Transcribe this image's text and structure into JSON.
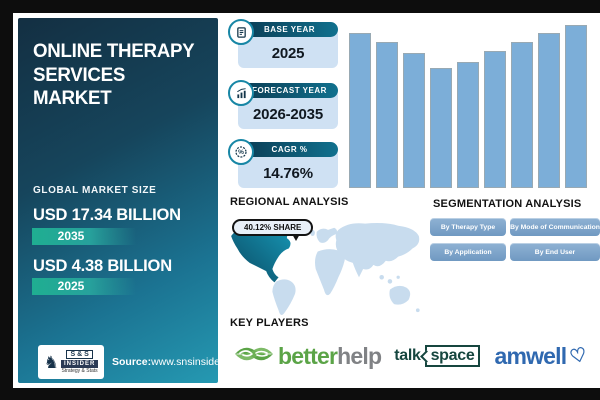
{
  "left_panel": {
    "title_lines": [
      "ONLINE THERAPY",
      "SERVICES",
      "MARKET"
    ],
    "market_size_label": "GLOBAL MARKET SIZE",
    "projected": {
      "value": "USD 17.34 BILLION",
      "year": "2035"
    },
    "base": {
      "value": "USD 4.38 BILLION",
      "year": "2025"
    },
    "source_label": "Source:",
    "source_url": "www.snsinsider.com",
    "logo": {
      "top": "S & S",
      "mid": "INSIDER",
      "bottom": "Strategy & Stats",
      "knight": "♞"
    }
  },
  "info_boxes": [
    {
      "label": "BASE YEAR",
      "value": "2025",
      "icon": "report-document-icon"
    },
    {
      "label": "FORECAST YEAR",
      "value": "2026-2035",
      "icon": "growth-chart-icon"
    },
    {
      "label": "CAGR %",
      "value": "14.76%",
      "icon": "percent-badge-icon"
    }
  ],
  "chart_data": {
    "type": "bar",
    "title": "",
    "xlabel": "",
    "ylabel": "",
    "categories": [
      "",
      "",
      "",
      "",
      "",
      "",
      "",
      "",
      ""
    ],
    "values": [
      155,
      146,
      135,
      120,
      126,
      137,
      146,
      155,
      163
    ],
    "note": "decorative unlabeled bar chart; values are relative bar heights in px, U-shaped dip then rise",
    "grid": false,
    "legend": false,
    "bar_color": "#7caed8"
  },
  "regional": {
    "heading": "REGIONAL ANALYSIS",
    "share_badge": "40.12% SHARE",
    "highlight_region": "north-america"
  },
  "segmentation": {
    "heading": "SEGMENTATION ANALYSIS",
    "buttons": [
      "By Therapy Type",
      "By Mode of Communication",
      "By Application",
      "By End User"
    ]
  },
  "key_players": {
    "heading": "KEY PLAYERS",
    "companies": [
      {
        "name": "betterhelp",
        "part1": "better",
        "part2": "help",
        "icon": "hands-leaf-icon"
      },
      {
        "name": "talkspace",
        "part1": "talk",
        "part2": "space",
        "icon": "speech-box-icon"
      },
      {
        "name": "amwell",
        "part1": "amwell",
        "heart": "♡",
        "icon": "heart-icon"
      }
    ]
  },
  "colors": {
    "panel_top": "#132f42",
    "panel_bottom": "#2599b2",
    "badge_green": "#1fae91",
    "pill_dark": "#0b3c54",
    "pill_light": "#11718e",
    "value_box_bg": "#cfe1f3",
    "bar_fill": "#7caed8",
    "map_light": "#c8dcee",
    "map_highlight_dark": "#0a4a63",
    "map_highlight_light": "#1796b4",
    "button_blue": "#7fa8cc",
    "betterhelp_green": "#5ba447",
    "betterhelp_gray": "#808285",
    "talkspace_teal": "#16463f",
    "amwell_blue": "#3069b0"
  }
}
